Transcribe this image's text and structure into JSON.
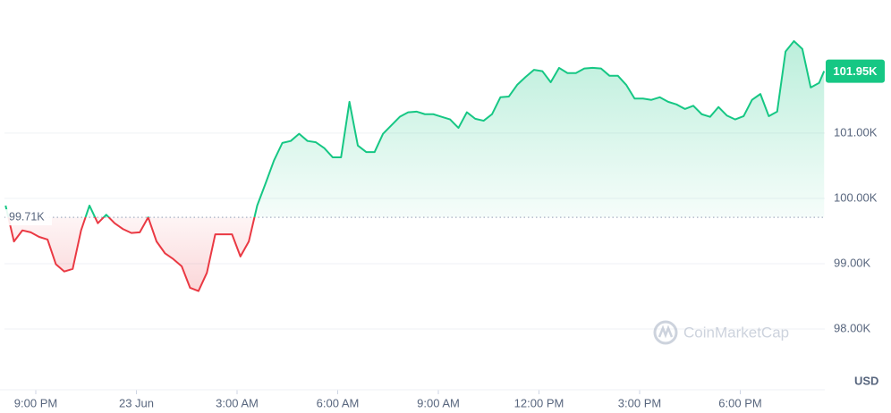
{
  "chart_data": {
    "type": "line",
    "x": [
      -0.9,
      -0.65,
      -0.4,
      -0.15,
      0.1,
      0.35,
      0.6,
      0.85,
      1.1,
      1.35,
      1.6,
      1.85,
      2.1,
      2.35,
      2.6,
      2.85,
      3.1,
      3.35,
      3.6,
      3.85,
      4.1,
      4.35,
      4.6,
      4.85,
      5.1,
      5.35,
      5.6,
      5.85,
      6.1,
      6.35,
      6.6,
      6.85,
      7.1,
      7.35,
      7.6,
      7.85,
      8.1,
      8.35,
      8.6,
      8.85,
      9.1,
      9.35,
      9.6,
      9.85,
      10.1,
      10.35,
      10.6,
      10.85,
      11.1,
      11.35,
      11.6,
      11.85,
      12.1,
      12.35,
      12.6,
      12.85,
      13.1,
      13.35,
      13.6,
      13.85,
      14.1,
      14.35,
      14.6,
      14.85,
      15.1,
      15.35,
      15.6,
      15.85,
      16.1,
      16.35,
      16.6,
      16.85,
      17.1,
      17.35,
      17.6,
      17.85,
      18.1,
      18.35,
      18.6,
      18.85,
      19.1,
      19.35,
      19.6,
      19.85,
      20.1,
      20.35,
      20.6,
      20.85,
      21.1,
      21.35,
      21.6,
      21.85,
      22.1,
      22.35,
      22.6,
      22.85,
      23.1,
      23.35,
      23.5
    ],
    "values": [
      99890,
      99340,
      99510,
      99480,
      99410,
      99370,
      98990,
      98880,
      98920,
      99510,
      99890,
      99620,
      99750,
      99620,
      99530,
      99470,
      99480,
      99710,
      99340,
      99160,
      99070,
      98960,
      98630,
      98580,
      98860,
      99450,
      99450,
      99450,
      99110,
      99340,
      99890,
      100230,
      100580,
      100850,
      100880,
      100990,
      100880,
      100860,
      100770,
      100630,
      100630,
      101480,
      100810,
      100710,
      100710,
      100990,
      101120,
      101250,
      101320,
      101330,
      101290,
      101290,
      101250,
      101210,
      101080,
      101320,
      101220,
      101190,
      101290,
      101550,
      101560,
      101740,
      101860,
      101970,
      101950,
      101780,
      102000,
      101920,
      101920,
      101990,
      102000,
      101990,
      101880,
      101880,
      101740,
      101530,
      101530,
      101510,
      101550,
      101480,
      101440,
      101370,
      101420,
      101290,
      101250,
      101400,
      101270,
      101210,
      101260,
      101510,
      101600,
      101260,
      101330,
      102250,
      102410,
      102290,
      101700,
      101770,
      101950
    ],
    "color_up": "#16c784",
    "color_down": "#ea3943",
    "baseline": {
      "value": 99710,
      "label": "99.71K"
    },
    "last_price": {
      "value": 101950,
      "label": "101.95K"
    },
    "xlim": [
      -1,
      23.6
    ],
    "xticks": [
      {
        "value": 0,
        "label": "9:00 PM"
      },
      {
        "value": 3,
        "label": "23 Jun"
      },
      {
        "value": 6,
        "label": "3:00 AM"
      },
      {
        "value": 9,
        "label": "6:00 AM"
      },
      {
        "value": 12,
        "label": "9:00 AM"
      },
      {
        "value": 15,
        "label": "12:00 PM"
      },
      {
        "value": 18,
        "label": "3:00 PM"
      },
      {
        "value": 21,
        "label": "6:00 PM"
      }
    ],
    "ylim": [
      97150,
      103040
    ],
    "yticks": [
      {
        "value": 98000,
        "label": "98.00K"
      },
      {
        "value": 99000,
        "label": "99.00K"
      },
      {
        "value": 100000,
        "label": "100.00K"
      },
      {
        "value": 101000,
        "label": "101.00K"
      }
    ],
    "currency": "USD",
    "watermark": "CoinMarketCap",
    "grid": true
  }
}
